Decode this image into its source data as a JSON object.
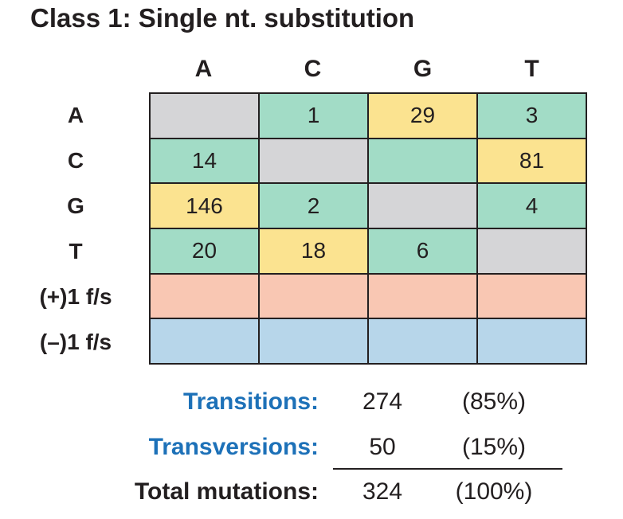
{
  "title": "Class 1: Single nt. substitution",
  "columns": [
    "A",
    "C",
    "G",
    "T"
  ],
  "rows": [
    "A",
    "C",
    "G",
    "T",
    "(+)1 f/s",
    "(–)1 f/s"
  ],
  "matrix": [
    [
      "",
      "1",
      "29",
      "3"
    ],
    [
      "14",
      "",
      "",
      "81"
    ],
    [
      "146",
      "2",
      "",
      "4"
    ],
    [
      "20",
      "18",
      "6",
      ""
    ],
    [
      "",
      "",
      "",
      ""
    ],
    [
      "",
      "",
      "",
      ""
    ]
  ],
  "cell_colors": {
    "gray": "#d5d5d7",
    "green": "#a2dcc6",
    "yellow": "#fbe390",
    "salmon": "#f9c7b3",
    "blue": "#b7d6ea"
  },
  "summary": {
    "transitions": {
      "label": "Transitions:",
      "count": "274",
      "percent": "(85%)"
    },
    "transversions": {
      "label": "Transversions:",
      "count": "50",
      "percent": "(15%)"
    },
    "total": {
      "label": "Total mutations:",
      "count": "324",
      "percent": "(100%)"
    },
    "label_color": "#1d71b8"
  }
}
